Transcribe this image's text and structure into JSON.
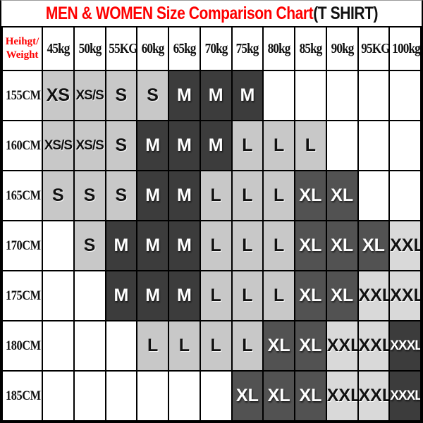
{
  "title": {
    "main_red": "MEN & WOMEN Size Comparison Chart",
    "suffix_black": "(T SHIRT)"
  },
  "corner_header": {
    "line1": "Heihgt/",
    "line2": "Weight"
  },
  "colors": {
    "accent_red": "#fe0000",
    "border_black": "#000000",
    "ink": "#111111",
    "cell_light": "#c8c8c8",
    "cell_pale": "#d9d9d9",
    "cell_dark": "#3c3c3c",
    "cell_mid": "#525252",
    "cell_empty": "#ffffff",
    "text_on_dark": "#ffffff"
  },
  "chart_data": {
    "type": "table",
    "title": "MEN & WOMEN Size Comparison Chart(T SHIRT)",
    "column_headers": [
      "45kg",
      "50kg",
      "55KG",
      "60kg",
      "65kg",
      "70kg",
      "75kg",
      "80kg",
      "85kg",
      "90kg",
      "95KG",
      "100kg"
    ],
    "row_headers": [
      "155CM",
      "160CM",
      "165CM",
      "170CM",
      "175CM",
      "180CM",
      "185CM"
    ],
    "matrix": [
      [
        "XS",
        "XS/S",
        "S",
        "S",
        "M",
        "M",
        "M",
        "",
        "",
        "",
        "",
        ""
      ],
      [
        "XS/S",
        "XS/S",
        "S",
        "M",
        "M",
        "M",
        "L",
        "L",
        "L",
        "",
        "",
        ""
      ],
      [
        "S",
        "S",
        "S",
        "M",
        "M",
        "L",
        "L",
        "L",
        "XL",
        "XL",
        "",
        ""
      ],
      [
        "",
        "S",
        "M",
        "M",
        "M",
        "L",
        "L",
        "L",
        "XL",
        "XL",
        "XL",
        "XXL"
      ],
      [
        "",
        "",
        "M",
        "M",
        "M",
        "L",
        "L",
        "L",
        "XL",
        "XL",
        "XXL",
        "XXL"
      ],
      [
        "",
        "",
        "",
        "L",
        "L",
        "L",
        "L",
        "XL",
        "XL",
        "XXL",
        "XXL",
        "XXXL"
      ],
      [
        "",
        "",
        "",
        "",
        "",
        "",
        "XL",
        "XL",
        "XL",
        "XXL",
        "XXL",
        "XXXL"
      ]
    ],
    "shade_matrix": [
      [
        "light",
        "light",
        "light",
        "light",
        "dark",
        "dark",
        "dark",
        "none",
        "none",
        "none",
        "none",
        "none"
      ],
      [
        "light",
        "light",
        "light",
        "dark",
        "dark",
        "dark",
        "light",
        "light",
        "light",
        "none",
        "none",
        "none"
      ],
      [
        "light",
        "light",
        "light",
        "dark",
        "dark",
        "light",
        "light",
        "light",
        "mid",
        "mid",
        "none",
        "none"
      ],
      [
        "none",
        "light",
        "dark",
        "dark",
        "dark",
        "light",
        "light",
        "light",
        "mid",
        "mid",
        "mid",
        "pale"
      ],
      [
        "none",
        "none",
        "dark",
        "dark",
        "dark",
        "light",
        "light",
        "light",
        "mid",
        "mid",
        "pale",
        "pale"
      ],
      [
        "none",
        "none",
        "none",
        "light",
        "light",
        "light",
        "light",
        "mid",
        "mid",
        "pale",
        "pale",
        "dark"
      ],
      [
        "none",
        "none",
        "none",
        "none",
        "none",
        "none",
        "mid",
        "mid",
        "mid",
        "pale",
        "pale",
        "dark"
      ]
    ]
  }
}
